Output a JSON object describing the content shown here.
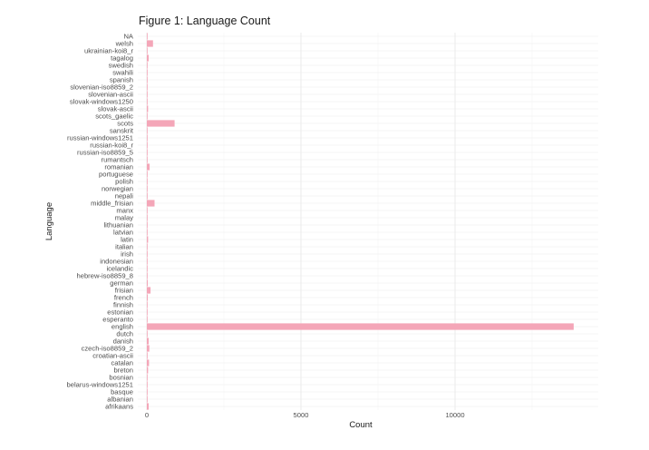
{
  "chart_data": {
    "type": "bar",
    "orientation": "horizontal",
    "title": "Figure 1: Language Count",
    "xlabel": "Count",
    "ylabel": "Language",
    "xlim": [
      0,
      14500
    ],
    "x_ticks": [
      0,
      5000,
      10000
    ],
    "grid": true,
    "bar_color": "#F4A6B8",
    "categories": [
      "NA",
      "welsh",
      "ukrainian-koi8_r",
      "tagalog",
      "swedish",
      "swahili",
      "spanish",
      "slovenian-iso8859_2",
      "slovenian-ascii",
      "slovak-windows1250",
      "slovak-ascii",
      "scots_gaelic",
      "scots",
      "sanskrit",
      "russian-windows1251",
      "russian-koi8_r",
      "russian-iso8859_5",
      "rumantsch",
      "romanian",
      "portuguese",
      "polish",
      "norwegian",
      "nepali",
      "middle_frisian",
      "manx",
      "malay",
      "lithuanian",
      "latvian",
      "latin",
      "italian",
      "irish",
      "indonesian",
      "icelandic",
      "hebrew-iso8859_8",
      "german",
      "frisian",
      "french",
      "finnish",
      "estonian",
      "esperanto",
      "english",
      "dutch",
      "danish",
      "czech-iso8859_2",
      "croatian-ascii",
      "catalan",
      "breton",
      "bosnian",
      "belarus-windows1251",
      "basque",
      "albanian",
      "afrikaans"
    ],
    "values": [
      5,
      200,
      10,
      60,
      10,
      5,
      20,
      5,
      5,
      5,
      40,
      5,
      900,
      5,
      5,
      5,
      5,
      5,
      90,
      20,
      10,
      5,
      5,
      250,
      10,
      5,
      5,
      5,
      40,
      10,
      5,
      5,
      5,
      5,
      30,
      120,
      30,
      5,
      5,
      10,
      13850,
      20,
      60,
      80,
      5,
      70,
      40,
      5,
      5,
      5,
      5,
      60
    ]
  }
}
